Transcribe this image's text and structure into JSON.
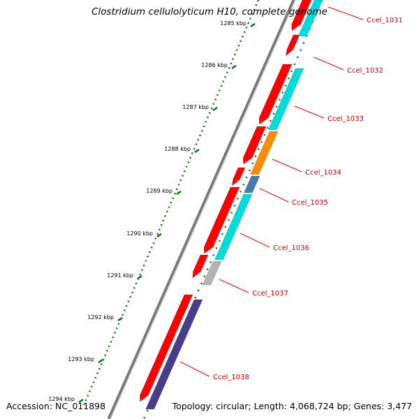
{
  "title": "Clostridium cellulolyticum H10, complete genome",
  "footer": {
    "accession": "Accession: NC_011898",
    "topology": "Topology: circular; Length: 4,068,724 bp; Genes: 3,477"
  },
  "scale_labels": [
    "1285 kbp",
    "1286 kbp",
    "1287 kbp",
    "1288 kbp",
    "1289 kbp",
    "1290 kbp",
    "1291 kbp",
    "1292 kbp",
    "1293 kbp",
    "1294 kbp"
  ],
  "gene_labels": [
    "Ccel_1031",
    "Ccel_1032",
    "Ccel_1033",
    "Ccel_1034",
    "Ccel_1035",
    "Ccel_1036",
    "Ccel_1037",
    "Ccel_1038"
  ],
  "colors": {
    "forward_strand": "#ff0000",
    "cyan": "#00dcdc",
    "orange": "#ff8c00",
    "steelblue": "#4a78b0",
    "gray": "#b4b4b4",
    "purple": "#483d8b",
    "label_red": "#cc0000",
    "tick_green": "#007700"
  }
}
